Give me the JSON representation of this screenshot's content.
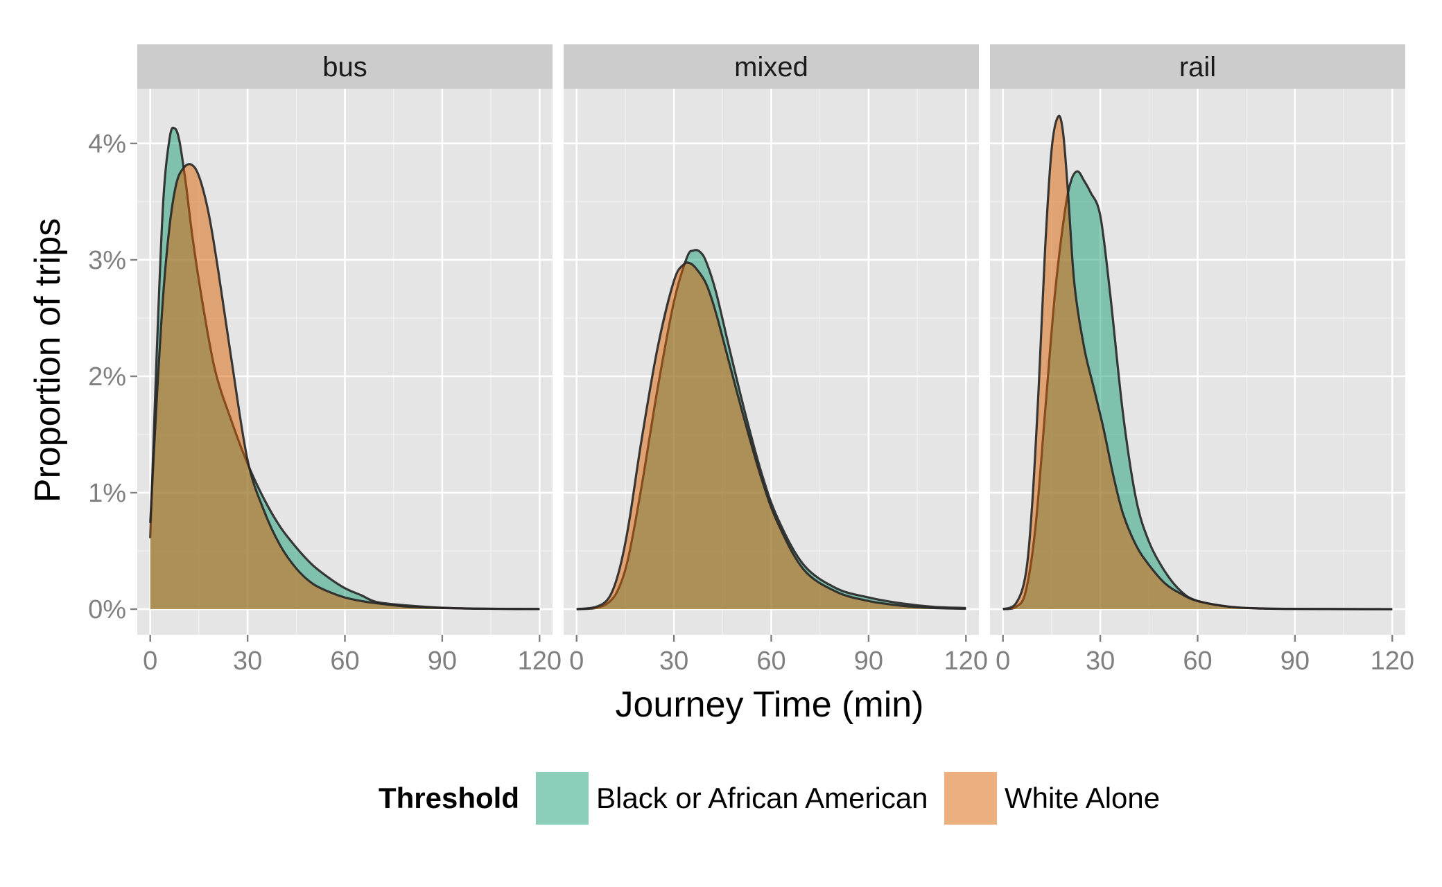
{
  "chart_data": {
    "type": "area",
    "subtype": "faceted density plot",
    "xlabel": "Journey Time (min)",
    "ylabel": "Proportion of trips",
    "xlim": [
      -4,
      124
    ],
    "ylim": [
      -0.0022,
      0.0447
    ],
    "x_ticks": [
      0,
      30,
      60,
      90,
      120
    ],
    "x_tick_labels": [
      "0",
      "30",
      "60",
      "90",
      "120"
    ],
    "y_ticks": [
      0,
      0.01,
      0.02,
      0.03,
      0.04
    ],
    "y_tick_labels": [
      "0%",
      "1%",
      "2%",
      "3%",
      "4%"
    ],
    "grid": true,
    "legend": {
      "title": "Threshold",
      "position": "bottom",
      "entries": [
        {
          "name": "Black or African American",
          "color": "#1b9e77"
        },
        {
          "name": "White Alone",
          "color": "#d95f02"
        }
      ]
    },
    "colors": {
      "panel_background": "#e5e5e5",
      "strip_background": "#cccccc",
      "grid_major": "#ffffff",
      "grid_minor": "#f2f2f2",
      "outline": "#262626",
      "black_fill": "#1b9e77",
      "white_fill": "#d95f02"
    },
    "facets": [
      {
        "name": "bus",
        "series": [
          {
            "name": "Black or African American",
            "x": [
              0,
              2,
              4,
              6,
              7.5,
              9,
              11,
              13,
              16,
              20,
              25,
              30,
              35,
              40,
              45,
              50,
              55,
              60,
              65,
              70,
              80,
              90,
              100,
              110,
              120
            ],
            "y": [
              0.0061,
              0.022,
              0.035,
              0.0405,
              0.0413,
              0.0402,
              0.0365,
              0.032,
              0.0265,
              0.0205,
              0.0162,
              0.0125,
              0.0095,
              0.0071,
              0.0053,
              0.0038,
              0.0027,
              0.0018,
              0.0012,
              0.0006,
              0.0003,
              0.00012,
              5e-05,
              2e-05,
              1e-05
            ]
          },
          {
            "name": "White Alone",
            "x": [
              0,
              2,
              4,
              6,
              8,
              10,
              12.5,
              15,
              18,
              21,
              25,
              30,
              35,
              40,
              45,
              50,
              55,
              60,
              65,
              70,
              80,
              90,
              100,
              110,
              120
            ],
            "y": [
              0.0074,
              0.018,
              0.027,
              0.033,
              0.0365,
              0.0378,
              0.0382,
              0.0372,
              0.034,
              0.029,
              0.0215,
              0.0128,
              0.0085,
              0.0055,
              0.0035,
              0.0022,
              0.0015,
              0.001,
              0.0007,
              0.0005,
              0.0002,
              0.0001,
              4e-05,
              2e-05,
              1e-05
            ]
          }
        ]
      },
      {
        "name": "mixed",
        "series": [
          {
            "name": "Black or African American",
            "x": [
              0,
              6,
              10,
              13,
              16,
              20,
              25,
              30,
              34,
              36,
              38,
              40,
              43,
              47,
              52,
              57,
              62,
              70,
              80,
              90,
              100,
              110,
              120
            ],
            "y": [
              0,
              0.0001,
              0.0006,
              0.0018,
              0.0045,
              0.0105,
              0.019,
              0.0264,
              0.0302,
              0.0308,
              0.0307,
              0.0298,
              0.0272,
              0.0225,
              0.0168,
              0.0117,
              0.0078,
              0.0038,
              0.0018,
              0.001,
              0.0005,
              0.0002,
              0.0001
            ]
          },
          {
            "name": "White Alone",
            "x": [
              0,
              6,
              10,
              13,
              16,
              20,
              25,
              30,
              33,
              35,
              37,
              40,
              43,
              47,
              52,
              57,
              62,
              70,
              80,
              90,
              100,
              110,
              120
            ],
            "y": [
              0,
              0.0002,
              0.001,
              0.0032,
              0.0072,
              0.0145,
              0.0225,
              0.0282,
              0.0296,
              0.0297,
              0.0292,
              0.0279,
              0.0254,
              0.0212,
              0.016,
              0.0112,
              0.0074,
              0.0034,
              0.0015,
              0.0007,
              0.0003,
              0.0001,
              3e-05
            ]
          }
        ]
      },
      {
        "name": "rail",
        "series": [
          {
            "name": "Black or African American",
            "x": [
              0,
              4,
              7,
              10,
              13,
              16,
              19,
              21,
              23,
              25,
              27,
              30,
              33,
              37,
              41,
              45,
              50,
              55,
              60,
              70,
              80,
              90,
              100,
              110,
              120
            ],
            "y": [
              0,
              0.0002,
              0.0015,
              0.007,
              0.017,
              0.027,
              0.034,
              0.0368,
              0.0376,
              0.0368,
              0.0358,
              0.0338,
              0.0272,
              0.0168,
              0.0095,
              0.0058,
              0.0032,
              0.0015,
              0.0007,
              0.0002,
              5e-05,
              2e-05,
              1e-05,
              0,
              0
            ]
          },
          {
            "name": "White Alone",
            "x": [
              0,
              4,
              7,
              9,
              11,
              13,
              15,
              17,
              18.5,
              20,
              22,
              25,
              28,
              31,
              34,
              37,
              41,
              45,
              50,
              55,
              60,
              70,
              80,
              90,
              120
            ],
            "y": [
              0,
              0.0005,
              0.003,
              0.009,
              0.019,
              0.031,
              0.0395,
              0.0423,
              0.041,
              0.036,
              0.028,
              0.0225,
              0.019,
              0.0155,
              0.0115,
              0.0082,
              0.0055,
              0.0038,
              0.0022,
              0.0013,
              0.0007,
              0.0002,
              6e-05,
              2e-05,
              0
            ]
          }
        ]
      }
    ]
  }
}
